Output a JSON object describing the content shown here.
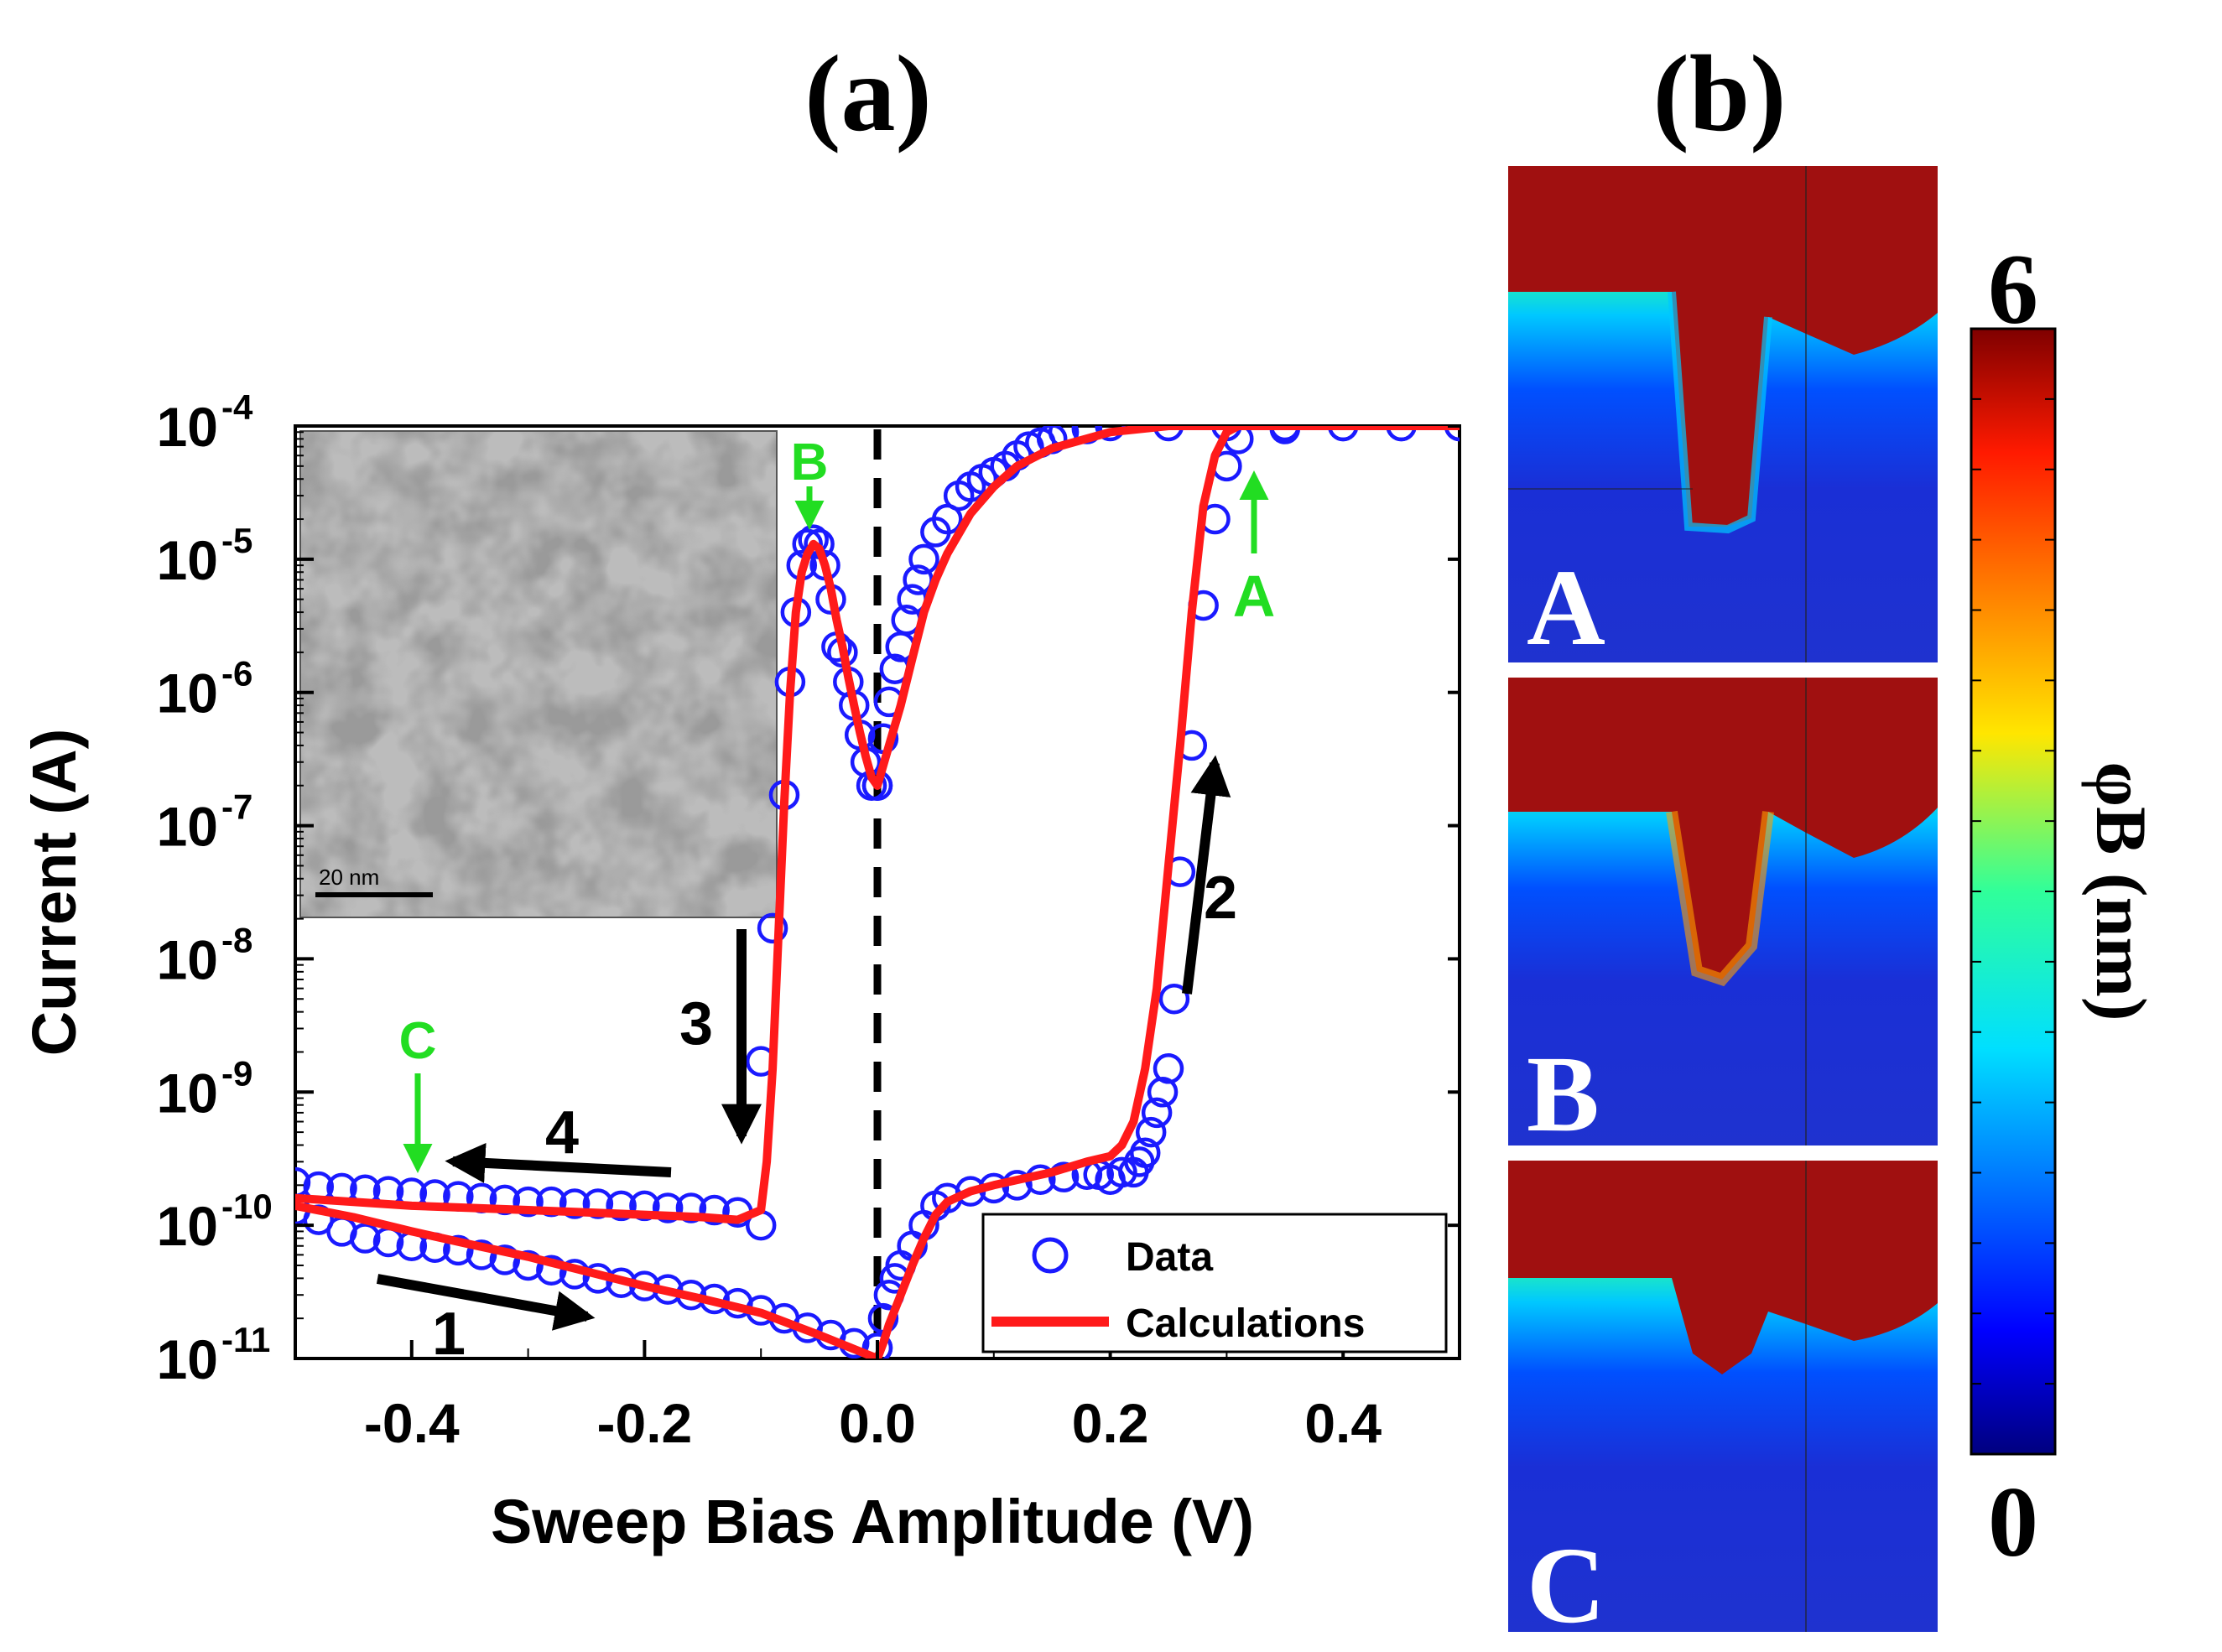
{
  "panel_a": {
    "label": "(a)"
  },
  "panel_b": {
    "label": "(b)"
  },
  "chart_data": [
    {
      "type": "scatter",
      "title": "",
      "xlabel": "Sweep Bias Amplitude (V)",
      "ylabel": "Current (A)",
      "xscale": "linear",
      "yscale": "log",
      "xlim": [
        -0.5,
        0.5
      ],
      "ylim": [
        1e-11,
        0.0001
      ],
      "xticks": [
        -0.4,
        -0.2,
        0.0,
        0.2,
        0.4
      ],
      "xtick_labels": [
        "-0.4",
        "-0.2",
        "0.0",
        "0.2",
        "0.4"
      ],
      "ytick_labels": [
        {
          "base": "10",
          "exp": "-4",
          "value": 0.0001
        },
        {
          "base": "10",
          "exp": "-5",
          "value": 1e-05
        },
        {
          "base": "10",
          "exp": "-6",
          "value": 1e-06
        },
        {
          "base": "10",
          "exp": "-7",
          "value": 1e-07
        },
        {
          "base": "10",
          "exp": "-8",
          "value": 1e-08
        },
        {
          "base": "10",
          "exp": "-9",
          "value": 1e-09
        },
        {
          "base": "10",
          "exp": "-10",
          "value": 1e-10
        },
        {
          "base": "10",
          "exp": "-11",
          "value": 1e-11
        }
      ],
      "legend": {
        "position": "bottom-right",
        "data_label": "Data",
        "calc_label": "Calculations"
      },
      "colors": {
        "data": "#1a1aff",
        "calc": "#ff1a1a",
        "annotation": "#22dd22",
        "arrow": "#000000"
      },
      "series": [
        {
          "name": "Data",
          "style": "open-circles",
          "branches": [
            {
              "x": [
                -0.5,
                -0.48,
                -0.46,
                -0.44,
                -0.42,
                -0.4,
                -0.38,
                -0.36,
                -0.34,
                -0.32,
                -0.3,
                -0.28,
                -0.26,
                -0.24,
                -0.22,
                -0.2,
                -0.18,
                -0.16,
                -0.14,
                -0.12,
                -0.1
              ],
              "y": [
                2.1e-10,
                1.95e-10,
                1.9e-10,
                1.85e-10,
                1.8e-10,
                1.75e-10,
                1.7e-10,
                1.65e-10,
                1.6e-10,
                1.55e-10,
                1.5e-10,
                1.5e-10,
                1.45e-10,
                1.45e-10,
                1.4e-10,
                1.4e-10,
                1.35e-10,
                1.35e-10,
                1.3e-10,
                1.25e-10,
                1e-10
              ]
            },
            {
              "x": [
                -0.1,
                -0.09,
                -0.08,
                -0.075,
                -0.07,
                -0.065,
                -0.06,
                -0.055,
                -0.05,
                -0.045,
                -0.04,
                -0.035,
                -0.03,
                -0.025,
                -0.02,
                -0.015,
                -0.01,
                -0.005,
                0.0
              ],
              "y": [
                1.7e-09,
                1.7e-08,
                1.7e-07,
                1.2e-06,
                4e-06,
                9e-06,
                1.3e-05,
                1.4e-05,
                1.3e-05,
                9e-06,
                5e-06,
                2.2e-06,
                2e-06,
                1.2e-06,
                8e-07,
                4.8e-07,
                3e-07,
                2e-07,
                2e-07
              ]
            },
            {
              "x": [
                0.0,
                0.005,
                0.01,
                0.015,
                0.02,
                0.025,
                0.03,
                0.035,
                0.04,
                0.05,
                0.06,
                0.07,
                0.08,
                0.09,
                0.1,
                0.11,
                0.12,
                0.13,
                0.14,
                0.15,
                0.16,
                0.18,
                0.2,
                0.25,
                0.3,
                0.35,
                0.4,
                0.45,
                0.5
              ],
              "y": [
                2e-07,
                4.5e-07,
                8.5e-07,
                1.5e-06,
                2.2e-06,
                3.5e-06,
                5e-06,
                7e-06,
                1e-05,
                1.6e-05,
                2e-05,
                3e-05,
                3.5e-05,
                4e-05,
                4.5e-05,
                5e-05,
                6e-05,
                7e-05,
                7.5e-05,
                8e-05,
                9e-05,
                9.5e-05,
                0.0001,
                0.0001,
                0.0001,
                0.0001,
                0.0001,
                0.0001,
                0.0001
              ]
            },
            {
              "x": [
                0.5,
                0.45,
                0.4,
                0.35,
                0.31,
                0.3,
                0.29,
                0.28,
                0.27,
                0.26,
                0.255,
                0.25,
                0.245,
                0.24,
                0.235,
                0.23,
                0.225,
                0.22,
                0.21,
                0.2,
                0.19,
                0.18,
                0.16,
                0.14,
                0.12,
                0.1,
                0.08,
                0.06,
                0.05,
                0.04,
                0.03,
                0.02,
                0.015,
                0.01,
                0.005,
                0.0
              ],
              "y": [
                0.0001,
                0.0001,
                0.0001,
                9.5e-05,
                8e-05,
                5e-05,
                2e-05,
                4.5e-06,
                4e-07,
                4.5e-08,
                5e-09,
                1.5e-09,
                1e-09,
                7e-10,
                5e-10,
                3.5e-10,
                3e-10,
                2.5e-10,
                2.5e-10,
                2.2e-10,
                2.4e-10,
                2.4e-10,
                2.3e-10,
                2.2e-10,
                2e-10,
                1.9e-10,
                1.8e-10,
                1.6e-10,
                1.4e-10,
                1e-10,
                7e-11,
                5e-11,
                4e-11,
                3e-11,
                2e-11,
                1.2e-11
              ]
            },
            {
              "x": [
                0.0,
                -0.02,
                -0.04,
                -0.06,
                -0.08,
                -0.1,
                -0.12,
                -0.14,
                -0.16,
                -0.18,
                -0.2,
                -0.22,
                -0.24,
                -0.26,
                -0.28,
                -0.3,
                -0.32,
                -0.34,
                -0.36,
                -0.38,
                -0.4,
                -0.42,
                -0.44,
                -0.46,
                -0.48,
                -0.5
              ],
              "y": [
                1.2e-11,
                1.3e-11,
                1.5e-11,
                1.7e-11,
                2e-11,
                2.3e-11,
                2.6e-11,
                2.8e-11,
                3e-11,
                3.3e-11,
                3.5e-11,
                3.7e-11,
                4e-11,
                4.3e-11,
                4.6e-11,
                5e-11,
                5.5e-11,
                6e-11,
                6.5e-11,
                6.8e-11,
                7e-11,
                7.5e-11,
                8e-11,
                9e-11,
                1.1e-10,
                1.3e-10
              ]
            }
          ]
        },
        {
          "name": "Calculations",
          "style": "line",
          "branches": [
            {
              "x": [
                -0.5,
                -0.45,
                -0.4,
                -0.35,
                -0.3,
                -0.25,
                -0.2,
                -0.15,
                -0.12,
                -0.1,
                -0.095,
                -0.09,
                -0.085,
                -0.08,
                -0.075,
                -0.07,
                -0.065,
                -0.06,
                -0.055,
                -0.05,
                -0.045,
                -0.04,
                -0.035,
                -0.03,
                -0.025,
                -0.02,
                -0.015,
                -0.01,
                -0.005,
                0.0
              ],
              "y": [
                1.6e-10,
                1.5e-10,
                1.4e-10,
                1.35e-10,
                1.3e-10,
                1.25e-10,
                1.2e-10,
                1.15e-10,
                1.1e-10,
                1.3e-10,
                3e-10,
                1.5e-09,
                1.5e-08,
                1.5e-07,
                1e-06,
                4e-06,
                8e-06,
                1.1e-05,
                1.3e-05,
                1.2e-05,
                9e-06,
                6e-06,
                3.5e-06,
                2.2e-06,
                1.3e-06,
                8e-07,
                5e-07,
                3.3e-07,
                2.3e-07,
                2e-07
              ]
            },
            {
              "x": [
                0.0,
                0.01,
                0.02,
                0.03,
                0.04,
                0.05,
                0.06,
                0.08,
                0.1,
                0.12,
                0.15,
                0.2,
                0.25,
                0.3,
                0.4,
                0.5
              ],
              "y": [
                2e-07,
                4e-07,
                8e-07,
                1.8e-06,
                4e-06,
                7e-06,
                1.1e-05,
                2.2e-05,
                3.5e-05,
                5e-05,
                6.8e-05,
                9e-05,
                0.0001,
                0.0001,
                0.0001,
                0.0001
              ]
            },
            {
              "x": [
                0.5,
                0.4,
                0.35,
                0.31,
                0.3,
                0.29,
                0.28,
                0.27,
                0.26,
                0.25,
                0.24,
                0.23,
                0.22,
                0.21,
                0.2,
                0.18,
                0.15,
                0.1,
                0.08,
                0.06,
                0.05,
                0.04,
                0.03,
                0.02,
                0.01,
                0.005,
                0.0
              ],
              "y": [
                0.0001,
                0.0001,
                0.0001,
                0.0001,
                9e-05,
                6e-05,
                2.5e-05,
                4e-06,
                4e-07,
                5e-08,
                6e-09,
                1.5e-09,
                6e-10,
                4e-10,
                3.3e-10,
                3e-10,
                2.5e-10,
                2e-10,
                1.8e-10,
                1.5e-10,
                1.2e-10,
                8e-11,
                5e-11,
                3e-11,
                1.8e-11,
                1.3e-11,
                1e-11
              ]
            },
            {
              "x": [
                0.0,
                -0.05,
                -0.1,
                -0.15,
                -0.2,
                -0.25,
                -0.3,
                -0.35,
                -0.4,
                -0.45,
                -0.5
              ],
              "y": [
                1e-11,
                1.5e-11,
                2.2e-11,
                2.8e-11,
                3.5e-11,
                4.5e-11,
                5.8e-11,
                7.2e-11,
                9e-11,
                1.15e-10,
                1.4e-10
              ]
            }
          ]
        }
      ],
      "annotations": {
        "dashed_line_x": 0.0,
        "points": [
          {
            "label": "A",
            "x": 0.32,
            "y": 7e-05,
            "color": "#22dd22"
          },
          {
            "label": "B",
            "x": -0.05,
            "y": 1.5e-05,
            "color": "#22dd22"
          },
          {
            "label": "C",
            "x": -0.4,
            "y": 1.9e-10,
            "color": "#22dd22"
          }
        ],
        "arrows": [
          {
            "label": "1",
            "direction": "right"
          },
          {
            "label": "2",
            "direction": "up"
          },
          {
            "label": "3",
            "direction": "down"
          },
          {
            "label": "4",
            "direction": "left"
          }
        ],
        "inset": {
          "type": "TEM micrograph",
          "scale_bar": "20 nm"
        }
      }
    },
    {
      "type": "heatmap",
      "title": "",
      "colorbar": {
        "label": "φB (nm)",
        "min": 0,
        "max": 6,
        "min_label": "0",
        "max_label": "6",
        "colormap": "jet"
      },
      "maps": [
        {
          "label": "A",
          "state": "filament connected"
        },
        {
          "label": "B",
          "state": "filament nearly connected"
        },
        {
          "label": "C",
          "state": "filament ruptured"
        }
      ]
    }
  ]
}
